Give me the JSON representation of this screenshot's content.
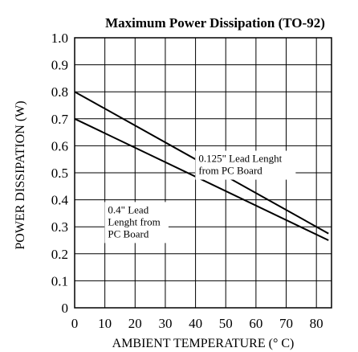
{
  "chart_data": {
    "type": "line",
    "title": "Maximum Power Dissipation (TO-92)",
    "xlabel": "AMBIENT TEMPERATURE (° C)",
    "ylabel": "POWER DISSIPATION (W)",
    "xlim": [
      0,
      85
    ],
    "ylim": [
      0,
      1.0
    ],
    "grid": true,
    "x_ticks": [
      0,
      10,
      20,
      30,
      40,
      50,
      60,
      70,
      80
    ],
    "x_tick_labels": [
      "0",
      "10",
      "20",
      "30",
      "40",
      "50",
      "60",
      "70",
      "80"
    ],
    "y_ticks": [
      0,
      0.1,
      0.2,
      0.3,
      0.4,
      0.5,
      0.6,
      0.7,
      0.8,
      0.9,
      1.0
    ],
    "y_tick_labels": [
      "0",
      "0.1",
      "0.2",
      "0.3",
      "0.4",
      "0.5",
      "0.6",
      "0.7",
      "0.8",
      "0.9",
      "1.0"
    ],
    "series": [
      {
        "name": "0.125\" Lead Lenght from PC Board",
        "x": [
          0,
          84
        ],
        "y": [
          0.8,
          0.275
        ]
      },
      {
        "name": "0.4\" Lead Lenght from PC Board",
        "x": [
          0,
          84
        ],
        "y": [
          0.7,
          0.25
        ]
      }
    ],
    "annotations": [
      {
        "lines": [
          "0.125\" Lead Lenght",
          "from PC Board"
        ],
        "x": 41,
        "y": 0.54
      },
      {
        "lines": [
          "0.4\" Lead",
          "Lenght from",
          "PC Board"
        ],
        "x": 11,
        "y": 0.35
      }
    ]
  }
}
